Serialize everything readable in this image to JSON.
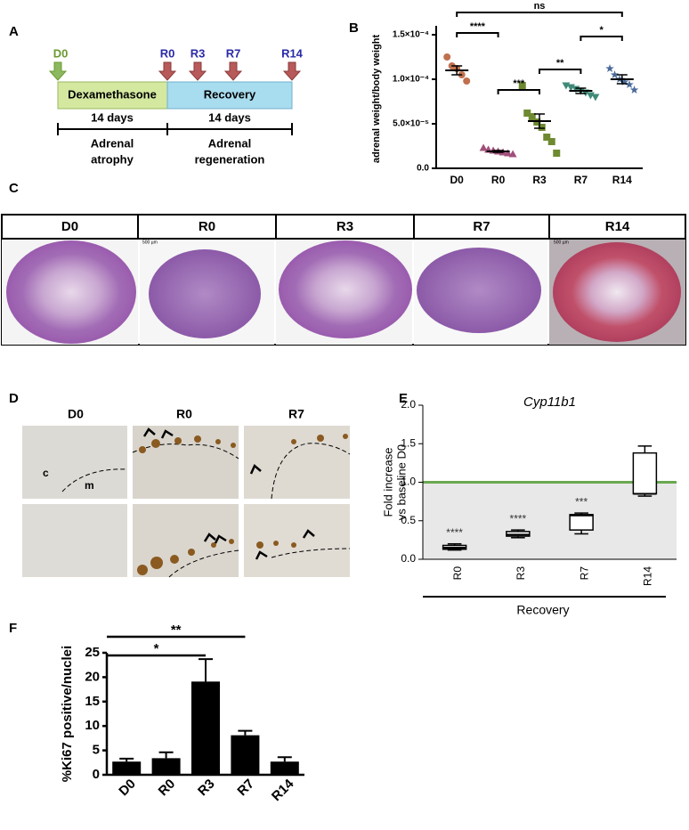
{
  "panel_labels": [
    "A",
    "B",
    "C",
    "D",
    "E",
    "F"
  ],
  "timeline": {
    "start": "D0",
    "markers": [
      "R0",
      "R3",
      "R7",
      "R14"
    ],
    "phases": [
      {
        "name": "Dexamethasone",
        "duration": "14 days",
        "outcome": [
          "Adrenal",
          "atrophy"
        ]
      },
      {
        "name": "Recovery",
        "duration": "14 days",
        "outcome": [
          "Adrenal",
          "regeneration"
        ]
      }
    ]
  },
  "histology": {
    "stages": [
      "D0",
      "R0",
      "R3",
      "R7",
      "R14"
    ],
    "scale_bars": {
      "R0": "500 µm",
      "R14": "500 µm"
    }
  },
  "staining": {
    "stages": [
      "D0",
      "R0",
      "R7"
    ],
    "labels": [
      "c",
      "m"
    ]
  },
  "chart_data": [
    {
      "type": "dot",
      "ylabel": "adrenal weight/body weight",
      "categories": [
        "D0",
        "R0",
        "R3",
        "R7",
        "R14"
      ],
      "colors": [
        "#c0704f",
        "#a0507a",
        "#6e8a30",
        "#3f8a78",
        "#4a6a9a"
      ],
      "markers": [
        "circle",
        "triangle",
        "square",
        "triangle-down",
        "star"
      ],
      "points": [
        [
          0.000125,
          0.000115,
          0.000112,
          0.000105,
          9.8e-05
        ],
        [
          2.3e-05,
          2.1e-05,
          2e-05,
          1.9e-05,
          1.8e-05,
          1.7e-05,
          1.6e-05
        ],
        [
          9.3e-05,
          6.2e-05,
          5.8e-05,
          5.2e-05,
          4.6e-05,
          3.5e-05,
          3e-05,
          1.7e-05
        ],
        [
          9.3e-05,
          9.1e-05,
          8.9e-05,
          8.7e-05,
          8.5e-05,
          8.2e-05,
          8e-05
        ],
        [
          0.000112,
          0.000105,
          0.0001,
          9.7e-05,
          9.4e-05,
          8.8e-05
        ]
      ],
      "means": [
        0.00011,
        1.9e-05,
        5.3e-05,
        8.7e-05,
        0.0001
      ],
      "sems": [
        5e-06,
        1e-06,
        8e-06,
        3e-06,
        5e-06
      ],
      "ylim": [
        0,
        0.00016
      ],
      "yticks": [
        {
          "value": 0,
          "label": "0.0"
        },
        {
          "value": 5e-05,
          "label": "5.0×10⁻⁵"
        },
        {
          "value": 0.0001,
          "label": "1.0×10⁻⁴"
        },
        {
          "value": 0.00015,
          "label": "1.5×10⁻⁴"
        }
      ],
      "comparisons": [
        {
          "from": 0,
          "to": 4,
          "label": "ns"
        },
        {
          "from": 0,
          "to": 1,
          "label": "****"
        },
        {
          "from": 1,
          "to": 2,
          "label": "***"
        },
        {
          "from": 2,
          "to": 3,
          "label": "**"
        },
        {
          "from": 3,
          "to": 4,
          "label": "*"
        }
      ]
    },
    {
      "type": "box",
      "title": "Cyp11b1",
      "ylabel": [
        "Fold increase",
        "vs baseline D0"
      ],
      "xlabel": "Recovery",
      "categories": [
        "R0",
        "R3",
        "R7",
        "R14"
      ],
      "min": [
        0.12,
        0.28,
        0.33,
        0.82
      ],
      "q1": [
        0.13,
        0.3,
        0.38,
        0.85
      ],
      "median": [
        0.15,
        0.32,
        0.57,
        0.85
      ],
      "q3": [
        0.18,
        0.36,
        0.58,
        1.38
      ],
      "max": [
        0.2,
        0.38,
        0.6,
        1.47
      ],
      "significance": [
        "****",
        "****",
        "***",
        null
      ],
      "baseline": 1,
      "baseline_color": "#6aa84f",
      "ylim": [
        0,
        2
      ],
      "yticks": [
        {
          "value": 0,
          "label": "0.0"
        },
        {
          "value": 0.5,
          "label": "0.5"
        },
        {
          "value": 1,
          "label": "1.0"
        },
        {
          "value": 1.5,
          "label": "1.5"
        },
        {
          "value": 2,
          "label": "2.0"
        }
      ]
    },
    {
      "type": "bar",
      "ylabel": "%Ki67 positive/nuclei",
      "categories": [
        "D0",
        "R0",
        "R3",
        "R7",
        "R14"
      ],
      "values": [
        2.7,
        3.4,
        19.1,
        8.1,
        2.7
      ],
      "errors": [
        0.6,
        1.2,
        4.6,
        0.9,
        0.9
      ],
      "color": "#000000",
      "ylim": [
        0,
        25
      ],
      "yticks": [
        0,
        5,
        10,
        15,
        20,
        25
      ],
      "comparisons": [
        {
          "from": 0,
          "to": 3,
          "label": "**"
        },
        {
          "from": 0,
          "to": 2,
          "label": "*"
        }
      ]
    }
  ]
}
